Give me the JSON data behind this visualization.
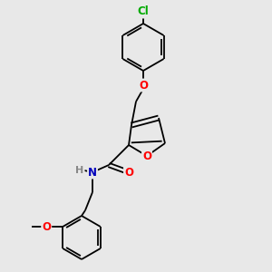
{
  "background_color": "#e8e8e8",
  "bond_color": "#000000",
  "atom_colors": {
    "O": "#ff0000",
    "N": "#0000bb",
    "H": "#888888",
    "Cl": "#00aa00",
    "C": "#000000"
  },
  "font_size": 8.5,
  "fig_size": [
    3.0,
    3.0
  ],
  "dpi": 100,
  "lw": 1.3
}
